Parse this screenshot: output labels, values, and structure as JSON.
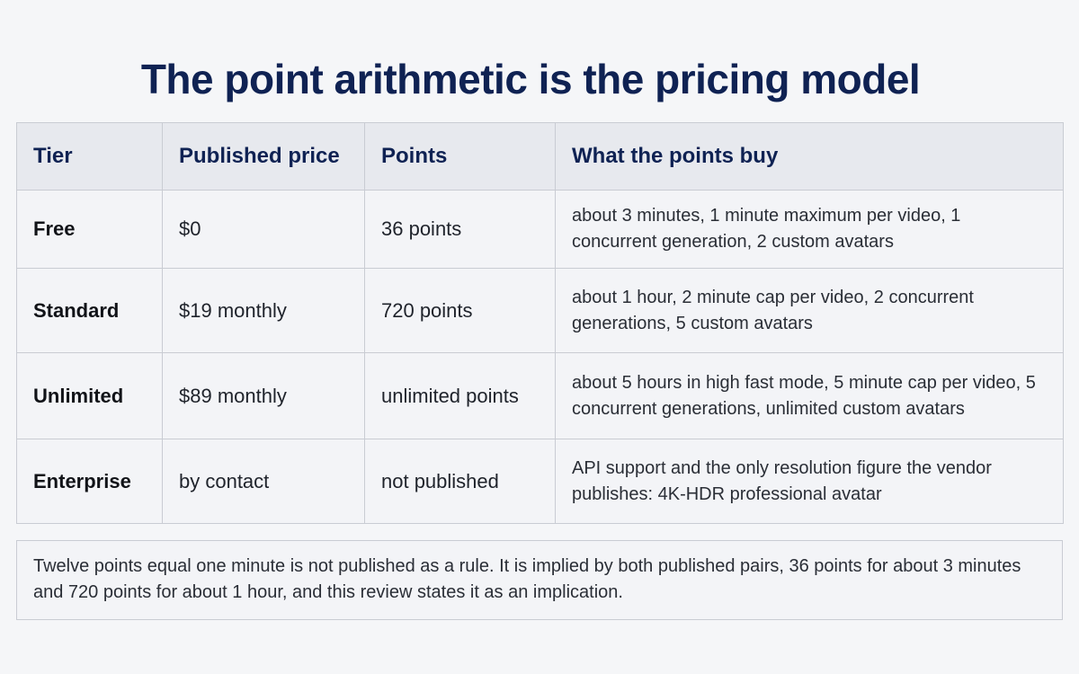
{
  "title": "The point arithmetic is the pricing model",
  "table": {
    "headers": {
      "tier": "Tier",
      "price": "Published price",
      "points": "Points",
      "buys": "What the points buy"
    },
    "rows": [
      {
        "tier": "Free",
        "price": "$0",
        "points": "36 points",
        "buys": "about 3 minutes, 1 minute maximum per video, 1 concurrent generation, 2 custom avatars"
      },
      {
        "tier": "Standard",
        "price": "$19 monthly",
        "points": "720 points",
        "buys": "about 1 hour, 2 minute cap per video, 2 concurrent generations, 5 custom avatars"
      },
      {
        "tier": "Unlimited",
        "price": "$89 monthly",
        "points": "unlimited points",
        "buys": "about 5 hours in high fast mode, 5 minute cap per video, 5 concurrent generations, unlimited custom avatars"
      },
      {
        "tier": "Enterprise",
        "price": "by contact",
        "points": "not published",
        "buys": "API support and the only resolution figure the vendor publishes: 4K-HDR professional avatar"
      }
    ]
  },
  "note": "Twelve points equal one minute is not published as a rule. It is implied by both published pairs, 36 points for about 3 minutes and 720 points for about 1 hour, and this review states it as an implication."
}
